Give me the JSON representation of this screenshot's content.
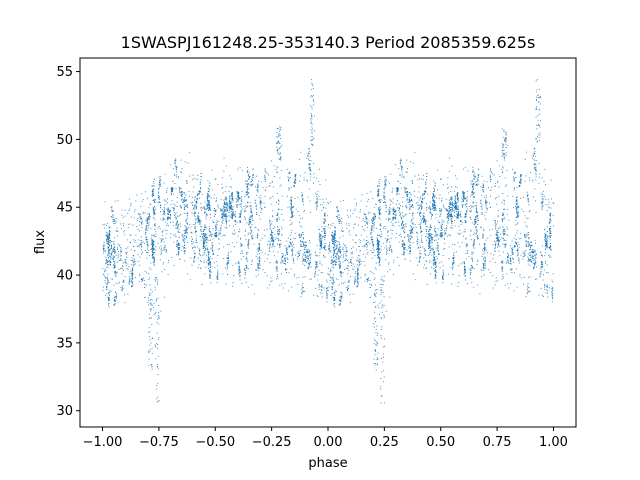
{
  "chart_data": {
    "type": "scatter",
    "title": "1SWASPJ161248.25-353140.3 Period 2085359.625s",
    "xlabel": "phase",
    "ylabel": "flux",
    "xlim": [
      -1.1,
      1.1
    ],
    "ylim": [
      28.8,
      56.0
    ],
    "x_ticks": [
      -1.0,
      -0.75,
      -0.5,
      -0.25,
      0.0,
      0.25,
      0.5,
      0.75,
      1.0
    ],
    "x_tick_labels": [
      "−1.00",
      "−0.75",
      "−0.50",
      "−0.25",
      "0.00",
      "0.25",
      "0.50",
      "0.75",
      "1.00"
    ],
    "y_ticks": [
      30,
      35,
      40,
      45,
      50,
      55
    ],
    "y_tick_labels": [
      "30",
      "35",
      "40",
      "45",
      "50",
      "55"
    ],
    "grid": false,
    "series_color": "#1f77b4",
    "profile_points": {
      "phase": [
        0.0,
        0.05,
        0.1,
        0.15,
        0.2,
        0.25,
        0.3,
        0.35,
        0.4,
        0.45,
        0.5,
        0.55,
        0.6,
        0.65,
        0.7,
        0.75,
        0.8,
        0.85,
        0.9,
        0.95,
        1.0
      ],
      "flux_center": [
        41.5,
        41.5,
        42.0,
        43.0,
        44.0,
        44.5,
        44.5,
        45.0,
        44.0,
        43.0,
        43.0,
        44.0,
        44.5,
        44.5,
        43.5,
        43.5,
        43.0,
        42.5,
        42.0,
        42.0,
        41.5
      ],
      "flux_low": [
        38.5,
        38.0,
        38.5,
        40.0,
        38.5,
        37.0,
        40.5,
        41.0,
        40.5,
        40.0,
        40.0,
        40.0,
        40.0,
        39.5,
        39.5,
        39.5,
        39.0,
        39.0,
        39.0,
        38.5,
        38.5
      ],
      "flux_high": [
        46.0,
        45.0,
        45.0,
        45.5,
        45.5,
        47.5,
        48.5,
        48.5,
        48.0,
        46.5,
        47.0,
        48.0,
        47.5,
        48.0,
        47.0,
        48.5,
        48.5,
        47.0,
        50.0,
        47.5,
        46.0
      ]
    },
    "outlier_excursions": [
      {
        "phase": 0.24,
        "flux_min": 30.5,
        "flux_max": 40.0
      },
      {
        "phase": -0.76,
        "flux_min": 30.5,
        "flux_max": 40.0
      },
      {
        "phase": 0.21,
        "flux_min": 33.0,
        "flux_max": 39.0
      },
      {
        "phase": -0.79,
        "flux_min": 33.0,
        "flux_max": 39.0
      },
      {
        "phase": 0.93,
        "flux_min": 49.5,
        "flux_max": 54.5
      },
      {
        "phase": -0.07,
        "flux_min": 49.5,
        "flux_max": 54.5
      },
      {
        "phase": 0.78,
        "flux_min": 48.5,
        "flux_max": 51.0
      },
      {
        "phase": -0.22,
        "flux_min": 48.5,
        "flux_max": 51.0
      }
    ]
  }
}
